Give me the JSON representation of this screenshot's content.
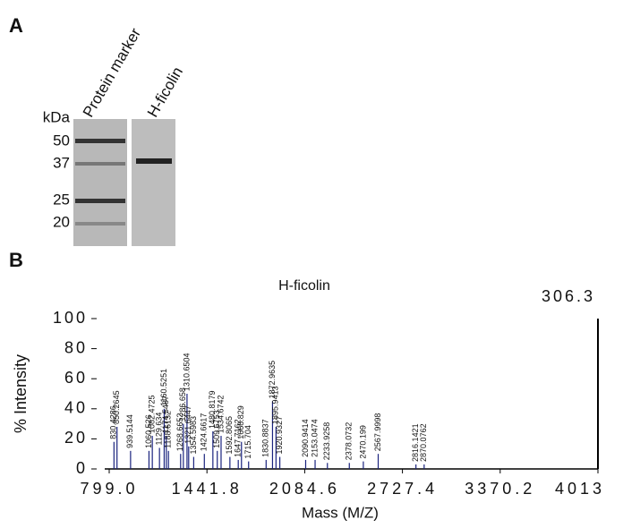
{
  "panel_a": {
    "label": "A",
    "lanes": [
      "Protein marker",
      "H-ficolin"
    ],
    "unit": "kDa",
    "markers": [
      "50",
      "37",
      "25",
      "20"
    ]
  },
  "chart_data": {
    "type": "spectrum",
    "panel_label": "B",
    "title": "H-ficolin",
    "annotation": "306.3",
    "x_label": "Mass (M/Z)",
    "y_label": "% Intensity",
    "color": "#1a237e",
    "xlim": [
      799,
      4013
    ],
    "xticks": [
      {
        "value": 799,
        "label": "799.0"
      },
      1441.8,
      2084.6,
      2727.4,
      3370.2,
      4013
    ],
    "ylim": [
      0,
      100
    ],
    "yticks": [
      0,
      20,
      40,
      60,
      80,
      100
    ],
    "x": [
      830.4286,
      850.2645,
      939.5144,
      1060.526,
      1082.4725,
      1129.634,
      1160.5251,
      1174.5487,
      1188.6132,
      1268.6652,
      1286.658,
      1310.6504,
      1321.6447,
      1354.5983,
      1424.6617,
      1480.8179,
      1509.6753,
      1534.6742,
      1592.8065,
      1647.7162,
      1668.829,
      1715.704,
      1830.8837,
      1872.9635,
      1895.9413,
      1920.9327,
      2090.9414,
      2153.0474,
      2233.9258,
      2378.0732,
      2470.199,
      2567.9998,
      2816.1421,
      2870.0762
    ],
    "values": [
      18,
      28,
      12,
      12,
      22,
      14,
      40,
      22,
      12,
      10,
      30,
      50,
      15,
      8,
      10,
      25,
      12,
      22,
      8,
      6,
      18,
      5,
      6,
      45,
      28,
      8,
      6,
      6,
      4,
      4,
      5,
      10,
      3,
      3
    ]
  }
}
